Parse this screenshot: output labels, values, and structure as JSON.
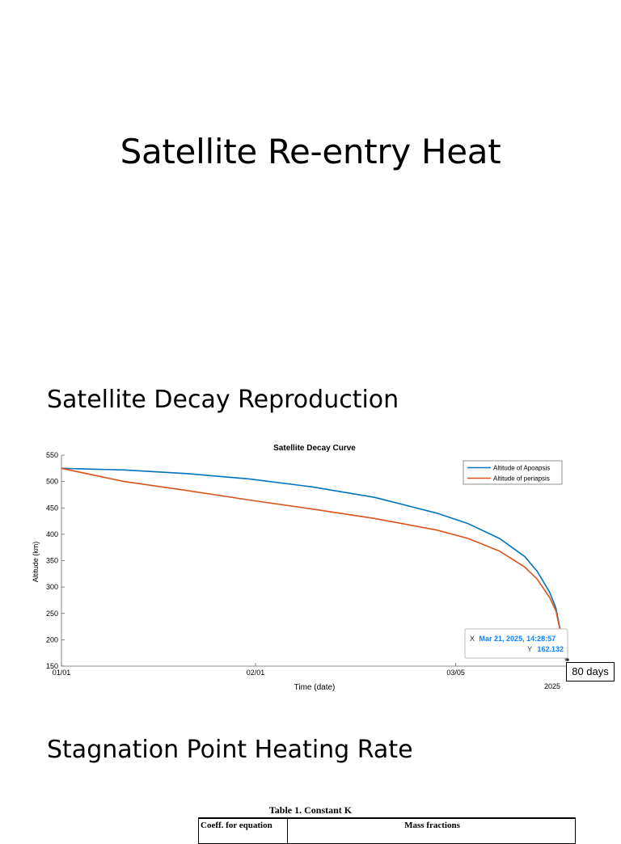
{
  "page": {
    "title": "Satellite Re-entry Heat",
    "section1": "Satellite Decay Reproduction",
    "section2": "Stagnation Point Heating Rate",
    "annotation": "80 days",
    "table_caption": "Table 1.  Constant K",
    "table_headers": [
      "Coeff. for equation",
      "Mass fractions"
    ]
  },
  "chart_data": {
    "type": "line",
    "title": "Satellite Decay Curve",
    "xlabel": "Time (date)",
    "ylabel": "Altitude (km)",
    "ylim": [
      150,
      550
    ],
    "yticks": [
      150,
      200,
      250,
      300,
      350,
      400,
      450,
      500,
      550
    ],
    "xlim_days": [
      0,
      81
    ],
    "xticks": [
      {
        "day": 0,
        "label": "01/01"
      },
      {
        "day": 31,
        "label": "02/01"
      },
      {
        "day": 63,
        "label": "03/05"
      }
    ],
    "x_secondary_label": "2025",
    "legend_position": "top-right",
    "series": [
      {
        "name": "Altitude of Apoapsis",
        "color": "#0072BD",
        "x": [
          0,
          10,
          20,
          30,
          40,
          50,
          60,
          65,
          70,
          74,
          76,
          78,
          79,
          80,
          80.3,
          80.6
        ],
        "y": [
          525,
          522,
          515,
          505,
          490,
          470,
          440,
          420,
          392,
          358,
          330,
          290,
          260,
          200,
          180,
          160
        ]
      },
      {
        "name": "Altitude of periapsis",
        "color": "#D95319",
        "x": [
          0,
          10,
          20,
          30,
          40,
          50,
          60,
          65,
          70,
          74,
          76,
          78,
          79,
          80,
          80.3,
          80.6
        ],
        "y": [
          525,
          500,
          483,
          465,
          448,
          430,
          408,
          392,
          368,
          338,
          315,
          280,
          255,
          200,
          180,
          160
        ]
      }
    ],
    "datatip": {
      "x_label": "X",
      "x_value": "Mar 21, 2025, 14:28:57",
      "y_label": "Y",
      "y_value": "162.132"
    }
  }
}
